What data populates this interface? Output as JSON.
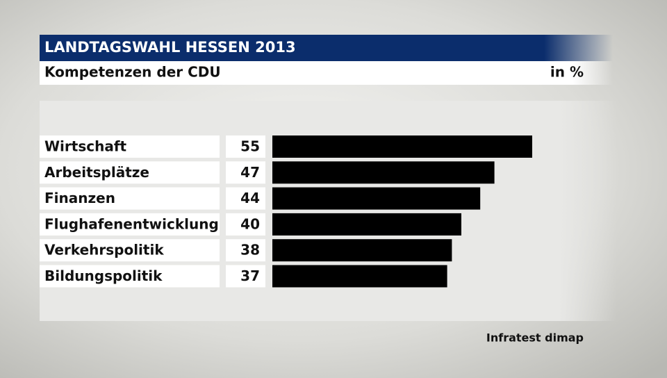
{
  "chart_data": {
    "type": "bar",
    "orientation": "horizontal",
    "title": "LANDTAGSWAHL HESSEN 2013",
    "subtitle": "Kompetenzen der CDU",
    "unit_label": "in %",
    "source": "Infratest dimap",
    "categories": [
      "Wirtschaft",
      "Arbeitsplätze",
      "Finanzen",
      "Flughafenentwicklung",
      "Verkehrspolitik",
      "Bildungspolitik"
    ],
    "values": [
      55,
      47,
      44,
      40,
      38,
      37
    ],
    "color": "#000000"
  }
}
